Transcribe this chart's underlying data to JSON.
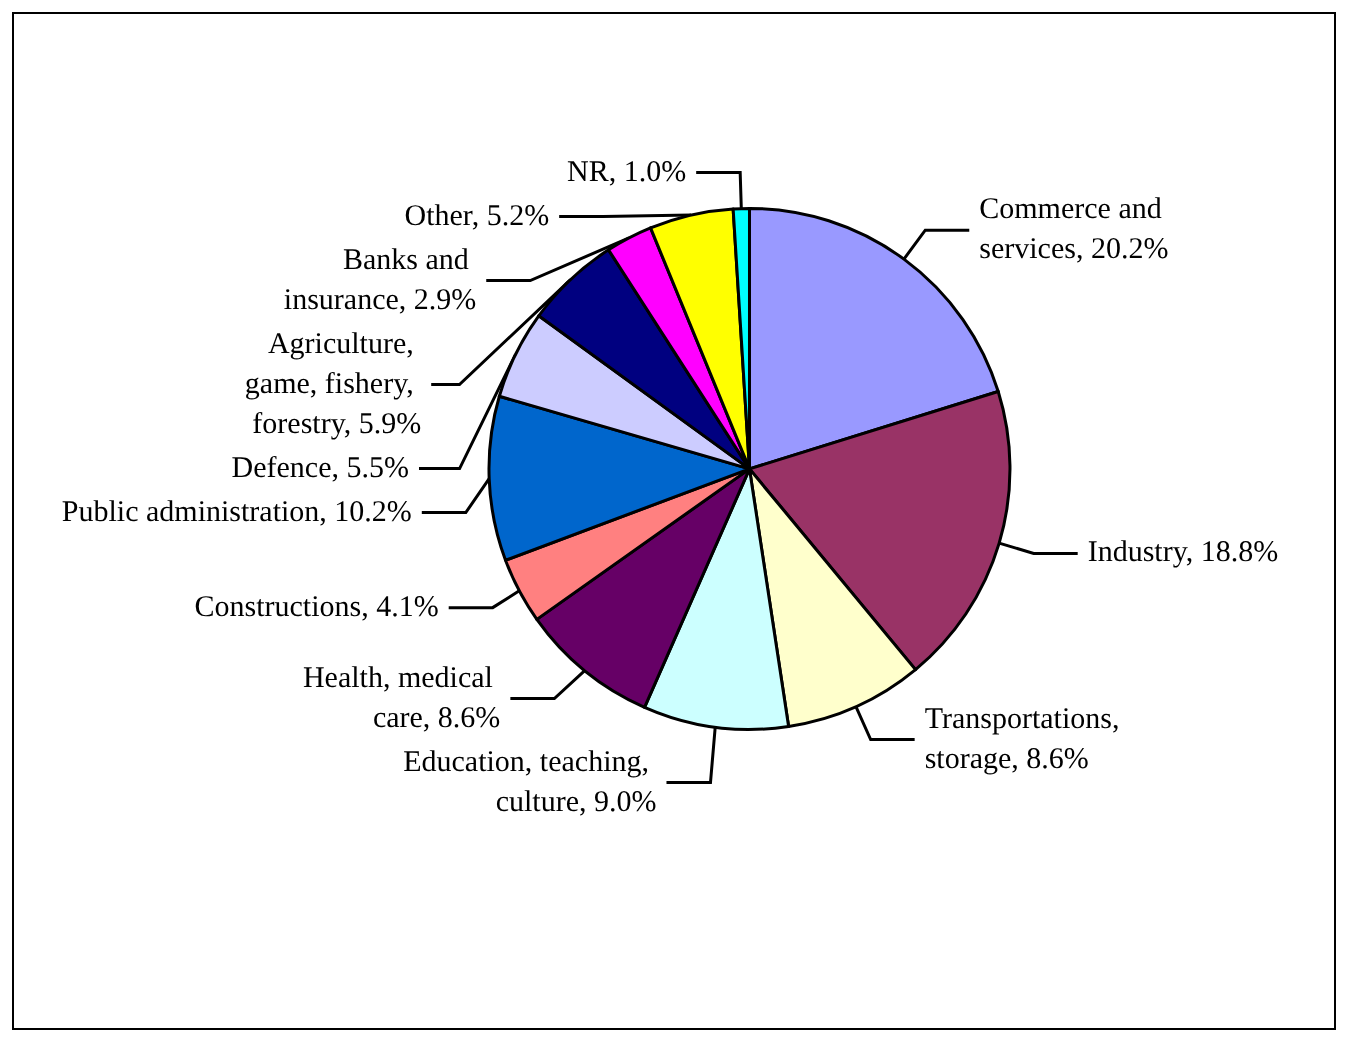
{
  "chart_data": {
    "type": "pie",
    "categories": [
      "Commerce and services",
      "Industry",
      "Transportations, storage",
      "Education, teaching, culture",
      "Health, medical care",
      "Constructions",
      "Public administration",
      "Defence",
      "Agriculture, game, fishery, forestry",
      "Banks and insurance",
      "Other",
      "NR"
    ],
    "values": [
      20.2,
      18.8,
      8.6,
      9.0,
      8.6,
      4.1,
      10.2,
      5.5,
      5.9,
      2.9,
      5.2,
      1.0
    ],
    "value_labels": [
      "20.2%",
      "18.8%",
      "8.6%",
      "9.0%",
      "8.6%",
      "4.1%",
      "10.2%",
      "5.5%",
      "5.9%",
      "2.9%",
      "5.2%",
      "1.0%"
    ],
    "colors": [
      "#9999ff",
      "#993366",
      "#ffffcc",
      "#ccffff",
      "#660066",
      "#ff8080",
      "#0066cc",
      "#ccccff",
      "#000080",
      "#ff00ff",
      "#ffff00",
      "#00ffff"
    ],
    "legend": false
  }
}
